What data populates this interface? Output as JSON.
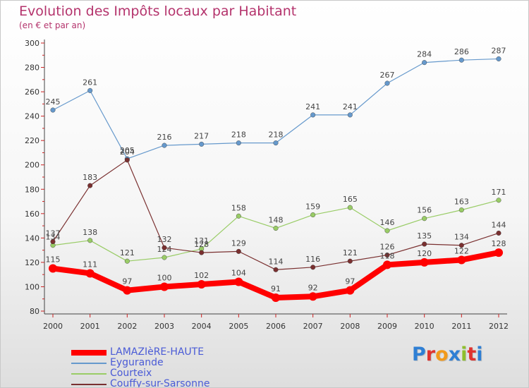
{
  "page": {
    "title": "Evolution des Impôts locaux par Habitant",
    "subtitle": "(en € et par an)"
  },
  "logo": {
    "text": "Proxiti",
    "letter_colors": [
      "#2f7fd4",
      "#e0332f",
      "#f29a1b",
      "#2f7fd4",
      "#8fbf2c",
      "#e0332f",
      "#2f7fd4"
    ]
  },
  "chart_data": {
    "type": "line",
    "title": "Evolution des Impôts locaux par Habitant",
    "subtitle": "(en € et par an)",
    "xlabel": "",
    "ylabel": "",
    "x": [
      "2000",
      "2001",
      "2002",
      "2003",
      "2004",
      "2005",
      "2006",
      "2007",
      "2008",
      "2009",
      "2010",
      "2011",
      "2012"
    ],
    "ylim": [
      80,
      300
    ],
    "yticks": [
      80,
      100,
      120,
      140,
      160,
      180,
      200,
      220,
      240,
      260,
      280,
      300
    ],
    "grid": false,
    "legend_position": "bottom-left",
    "series": [
      {
        "name": "LAMAZIèRE-HAUTE",
        "color": "#ff0000",
        "values": [
          115,
          111,
          97,
          100,
          102,
          104,
          91,
          92,
          97,
          118,
          120,
          122,
          128
        ]
      },
      {
        "name": "Eygurande",
        "color": "#6699cc",
        "values": [
          245,
          261,
          205,
          216,
          217,
          218,
          218,
          241,
          241,
          267,
          284,
          286,
          287
        ]
      },
      {
        "name": "Courteix",
        "color": "#99cc66",
        "values": [
          134,
          138,
          121,
          124,
          131,
          158,
          148,
          159,
          165,
          146,
          156,
          163,
          171
        ]
      },
      {
        "name": "Couffy-sur-Sarsonne",
        "color": "#7a3030",
        "values": [
          137,
          183,
          204,
          132,
          128,
          129,
          114,
          116,
          121,
          126,
          135,
          134,
          144
        ]
      }
    ]
  }
}
